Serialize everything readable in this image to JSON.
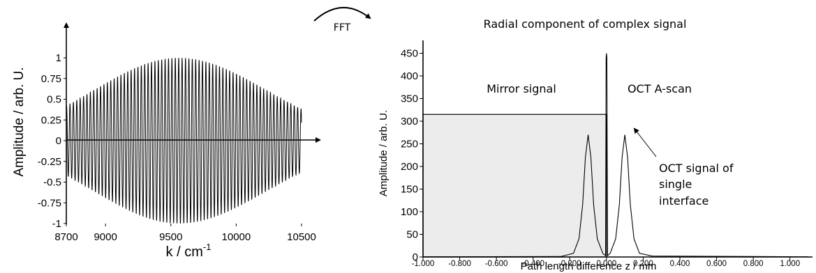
{
  "fft_label": "FFT",
  "chart_data": [
    {
      "type": "line",
      "title": "",
      "xlabel": "k / cm",
      "xlabel_superscript": "-1",
      "ylabel": "Amplitude / arb. U.",
      "xlim": [
        8700,
        10500
      ],
      "ylim": [
        -1,
        1
      ],
      "xticks": [
        "8700",
        "9000",
        "9500",
        "10000",
        "10500"
      ],
      "yticks": [
        "1",
        "0.75",
        "0.5",
        "0.25",
        "0",
        "-0.25",
        "-0.5",
        "-0.75",
        "-1"
      ],
      "grid": false,
      "series": [
        {
          "description": "cosine interferogram under a Gaussian envelope",
          "envelope_peak_k": 9560,
          "envelope_peak_amplitude": 1.0,
          "amplitude_at_8700": 0.42,
          "amplitude_at_10500": 0.38,
          "fringe_period_cm-1": 26,
          "x_start": 8700,
          "x_end": 10500
        }
      ]
    },
    {
      "type": "line",
      "title": "Radial component of complex signal",
      "xlabel": "Path length difference z / mm",
      "ylabel": "Amplitude / arb. U.",
      "xlim": [
        -1.0,
        1.1
      ],
      "ylim": [
        0,
        460
      ],
      "xticks": [
        "-1.000",
        "-0.800",
        "-0.600",
        "-0.400",
        "-0.200",
        "0.000",
        "0.200",
        "0.400",
        "0.600",
        "0.800",
        "1.000"
      ],
      "yticks": [
        "450",
        "400",
        "350",
        "300",
        "250",
        "200",
        "150",
        "100",
        "50",
        "0"
      ],
      "grid": false,
      "shaded_region": {
        "x": [
          -1.0,
          0.0
        ],
        "y": [
          0,
          315
        ],
        "color": "#ececec"
      },
      "series": [
        {
          "name": "",
          "points": [
            [
              -1.0,
              0.5
            ],
            [
              -0.25,
              1
            ],
            [
              -0.18,
              8
            ],
            [
              -0.15,
              40
            ],
            [
              -0.13,
              115
            ],
            [
              -0.115,
              220
            ],
            [
              -0.1,
              270
            ],
            [
              -0.085,
              220
            ],
            [
              -0.07,
              115
            ],
            [
              -0.05,
              40
            ],
            [
              -0.02,
              8
            ],
            [
              -0.005,
              3
            ],
            [
              -0.002,
              440
            ],
            [
              0.0,
              450
            ],
            [
              0.002,
              440
            ],
            [
              0.006,
              3
            ],
            [
              0.02,
              8
            ],
            [
              0.05,
              40
            ],
            [
              0.07,
              115
            ],
            [
              0.085,
              220
            ],
            [
              0.1,
              270
            ],
            [
              0.115,
              220
            ],
            [
              0.13,
              115
            ],
            [
              0.15,
              40
            ],
            [
              0.18,
              8
            ],
            [
              0.25,
              2
            ],
            [
              0.8,
              1
            ],
            [
              1.1,
              0.5
            ]
          ]
        }
      ],
      "annotations": {
        "mirror": "Mirror signal",
        "ascan": "OCT A-scan",
        "peak_line1": "OCT signal of",
        "peak_line2": "single",
        "peak_line3": "interface"
      }
    }
  ]
}
